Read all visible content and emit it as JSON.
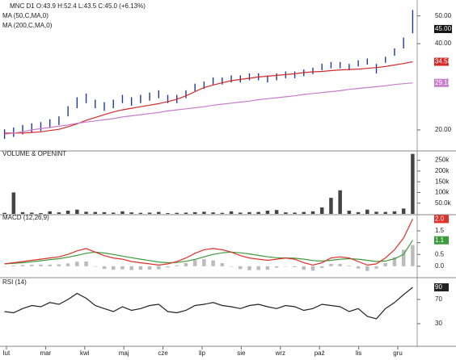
{
  "chart_data": [
    {
      "type": "ohlc",
      "title": "MNC D1 O:43.9 H:52.4 L:43.5 C:45.0 (+6.13%)",
      "log_scale": true,
      "legend": "top-left",
      "color": "#1f3b9a",
      "low": [
        18.6,
        18.9,
        19.3,
        19.6,
        19.8,
        20.3,
        20.8,
        22.3,
        23.8,
        24.8,
        23.8,
        23.3,
        23.8,
        24.8,
        24.3,
        24.8,
        25.3,
        25.8,
        24.8,
        24.8,
        25.8,
        27.3,
        27.8,
        28.8,
        28.8,
        29.3,
        29.3,
        29.8,
        29.8,
        29.3,
        29.8,
        30.3,
        30.3,
        30.8,
        31.3,
        32.3,
        32.8,
        32.8,
        32.3,
        33.3,
        33.8,
        31.5,
        34.3,
        36.3,
        38.5,
        43.5
      ],
      "high": [
        20.1,
        20.4,
        20.8,
        21.1,
        21.3,
        21.8,
        22.3,
        24.2,
        26,
        26.8,
        25.5,
        25,
        25.5,
        26.5,
        26,
        26.5,
        27,
        27.5,
        26.5,
        26.5,
        27.5,
        29,
        29.5,
        30.5,
        30.5,
        31,
        31,
        31.5,
        31.5,
        31,
        31.5,
        32,
        32,
        32.5,
        33,
        34,
        34.5,
        34.5,
        34,
        35,
        35.5,
        34,
        36,
        38.5,
        42,
        52.4
      ],
      "last_price": {
        "value": 45,
        "label": "45.00"
      },
      "series": [
        {
          "name": "MA (50,C,MA,0)",
          "color": "#d42a2a",
          "last_label": "34.58",
          "values": [
            19.5,
            19.5,
            19.5,
            19.6,
            19.7,
            19.9,
            20.1,
            20.5,
            21,
            21.6,
            22.1,
            22.6,
            23.1,
            23.5,
            23.8,
            24.1,
            24.4,
            24.7,
            25.1,
            25.6,
            26.3,
            27.2,
            28.1,
            28.7,
            29.2,
            29.7,
            30,
            30.3,
            30.6,
            30.8,
            31,
            31.2,
            31.4,
            31.7,
            31.9,
            32,
            32.2,
            32.4,
            32.5,
            32.6,
            32.8,
            33,
            33.3,
            33.7,
            34.1,
            34.58
          ]
        },
        {
          "name": "MA (200,C,MA,0)",
          "color": "#c77ccc",
          "last_label": "29.18",
          "values": [
            19.3,
            19.5,
            19.7,
            20,
            20.2,
            20.4,
            20.6,
            20.8,
            21.1,
            21.3,
            21.5,
            21.7,
            21.9,
            22.2,
            22.4,
            22.6,
            22.8,
            23,
            23.3,
            23.5,
            23.7,
            23.9,
            24.1,
            24.4,
            24.6,
            24.8,
            25,
            25.2,
            25.5,
            25.7,
            25.9,
            26.1,
            26.3,
            26.6,
            26.8,
            27,
            27.2,
            27.4,
            27.7,
            27.9,
            28.1,
            28.3,
            28.5,
            28.8,
            29,
            29.18
          ]
        }
      ],
      "ylim": [
        17,
        55
      ],
      "yticks": [
        {
          "value": 20,
          "label": "20.00"
        },
        {
          "value": 40,
          "label": "40.00"
        },
        {
          "value": 50,
          "label": "50.00"
        }
      ]
    },
    {
      "type": "bar",
      "title": "VOLUME & OPENINT",
      "series": [
        {
          "color": "#444444",
          "values": [
            5000,
            100000,
            8000,
            6000,
            4000,
            12000,
            7000,
            15000,
            20000,
            10000,
            9000,
            8000,
            6000,
            12000,
            7000,
            5000,
            6000,
            9000,
            4000,
            5000,
            6000,
            8000,
            10000,
            7000,
            5000,
            12000,
            6000,
            8000,
            9000,
            15000,
            18000,
            7000,
            6000,
            9000,
            12000,
            30000,
            75000,
            110000,
            15000,
            8000,
            20000,
            10000,
            9000,
            12000,
            25000,
            280000
          ]
        }
      ],
      "ylim": [
        0,
        290000
      ],
      "yticks": [
        {
          "value": 50000,
          "label": "50.0k"
        },
        {
          "value": 100000,
          "label": "100k"
        },
        {
          "value": 150000,
          "label": "150k"
        },
        {
          "value": 200000,
          "label": "200k"
        },
        {
          "value": 250000,
          "label": "250k"
        }
      ]
    },
    {
      "type": "line",
      "title": "MACD (12,26,9)",
      "series": [
        {
          "color": "#bbbbbb",
          "style": "bar",
          "values": [
            0,
            0.03,
            0.05,
            0.06,
            0.07,
            0.07,
            0.08,
            0.12,
            0.19,
            0.2,
            0,
            -0.11,
            -0.15,
            -0.13,
            -0.16,
            -0.15,
            -0.14,
            -0.13,
            -0.05,
            0.04,
            0.14,
            0.26,
            0.3,
            0.25,
            0.13,
            0,
            -0.12,
            -0.17,
            -0.16,
            -0.15,
            -0.06,
            0,
            -0.04,
            -0.15,
            -0.19,
            -0.07,
            0.1,
            0.1,
            0.03,
            -0.1,
            -0.2,
            -0.1,
            0.13,
            0.38,
            0.7,
            0.9
          ]
        },
        {
          "color": "#3c9a3c",
          "last_label": "1.1",
          "values": [
            0.1,
            0.12,
            0.15,
            0.19,
            0.23,
            0.28,
            0.32,
            0.38,
            0.46,
            0.55,
            0.6,
            0.56,
            0.5,
            0.43,
            0.36,
            0.3,
            0.24,
            0.18,
            0.15,
            0.16,
            0.21,
            0.29,
            0.4,
            0.5,
            0.57,
            0.6,
            0.57,
            0.52,
            0.46,
            0.4,
            0.36,
            0.35,
            0.34,
            0.3,
            0.24,
            0.22,
            0.25,
            0.3,
            0.32,
            0.3,
            0.25,
            0.2,
            0.22,
            0.32,
            0.5,
            1.1
          ]
        },
        {
          "color": "#e0302a",
          "last_label": "2.0",
          "values": [
            0.1,
            0.15,
            0.2,
            0.25,
            0.3,
            0.35,
            0.4,
            0.5,
            0.65,
            0.75,
            0.6,
            0.45,
            0.35,
            0.3,
            0.2,
            0.15,
            0.1,
            0.05,
            0.1,
            0.2,
            0.35,
            0.55,
            0.7,
            0.75,
            0.7,
            0.6,
            0.45,
            0.35,
            0.3,
            0.25,
            0.3,
            0.35,
            0.3,
            0.15,
            0.05,
            0.15,
            0.35,
            0.4,
            0.35,
            0.2,
            0.05,
            0.1,
            0.35,
            0.7,
            1.2,
            2.0
          ]
        }
      ],
      "ylim": [
        -0.45,
        2.15
      ],
      "yticks": [
        {
          "value": 0,
          "label": "0.0"
        },
        0.5,
        {
          "value": 1,
          "label": "1.0"
        },
        1.5
      ]
    },
    {
      "type": "line",
      "title": "RSI (14)",
      "series": [
        {
          "color": "#222222",
          "last_label": "90",
          "values": [
            50,
            48,
            55,
            60,
            58,
            65,
            62,
            70,
            80,
            72,
            60,
            55,
            50,
            58,
            52,
            55,
            60,
            62,
            50,
            48,
            52,
            60,
            62,
            65,
            60,
            58,
            55,
            60,
            62,
            58,
            55,
            60,
            58,
            52,
            55,
            62,
            60,
            58,
            50,
            55,
            42,
            38,
            55,
            65,
            78,
            90
          ]
        }
      ],
      "ylim": [
        -6,
        102
      ],
      "yticks": [
        30,
        70
      ],
      "x_labels": [
        "lut",
        "mar",
        "kwi",
        "maj",
        "cze",
        "lip",
        "sie",
        "wrz",
        "paź",
        "lis",
        "gru"
      ]
    }
  ]
}
